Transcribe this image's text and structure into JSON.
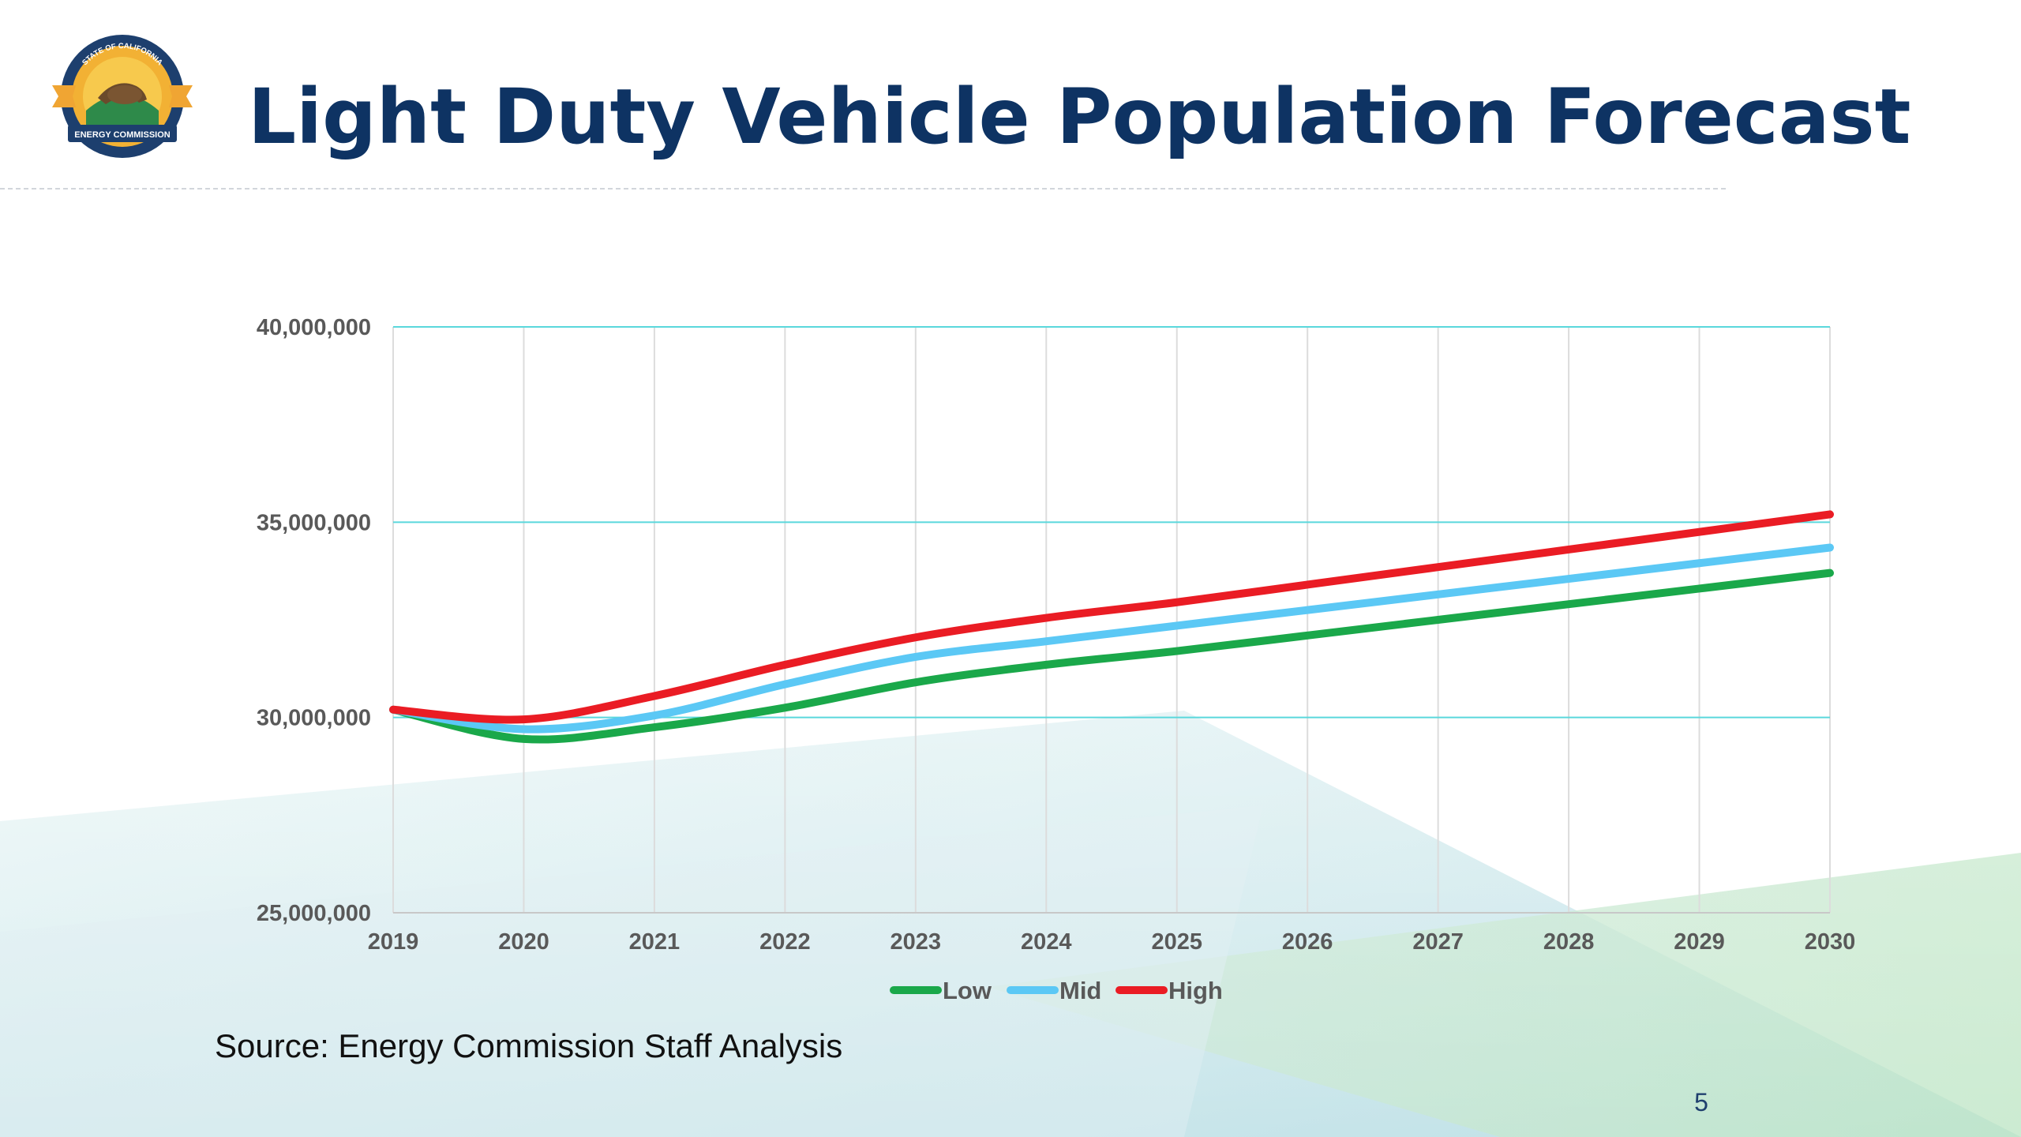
{
  "slide": {
    "title": "Light Duty Vehicle Population Forecast",
    "source": "Source: Energy Commission Staff Analysis",
    "page_number": "5",
    "logo_ring_top": "STATE OF CALIFORNIA",
    "logo_ring_bottom": "ENERGY COMMISSION"
  },
  "colors": {
    "title": "#0e3363",
    "grid_horizontal": "#5ad8dc",
    "grid_vertical": "#dcdcdc",
    "tick_text": "#595959"
  },
  "chart_data": {
    "type": "line",
    "title": "",
    "xlabel": "",
    "ylabel": "",
    "x": [
      2019,
      2020,
      2021,
      2022,
      2023,
      2024,
      2025,
      2026,
      2027,
      2028,
      2029,
      2030
    ],
    "xlim": [
      2019,
      2030
    ],
    "ylim": [
      25000000,
      40000000
    ],
    "y_ticks": [
      "25,000,000",
      "30,000,000",
      "35,000,000",
      "40,000,000"
    ],
    "y_tick_values": [
      25000000,
      30000000,
      35000000,
      40000000
    ],
    "grid": true,
    "legend_position": "bottom",
    "series": [
      {
        "name": "Low",
        "color": "#1aa84a",
        "values": [
          30200000,
          29450000,
          29750000,
          30250000,
          30900000,
          31350000,
          31700000,
          32100000,
          32500000,
          32900000,
          33300000,
          33700000
        ]
      },
      {
        "name": "Mid",
        "color": "#5bc8f5",
        "values": [
          30200000,
          29700000,
          30050000,
          30850000,
          31550000,
          31950000,
          32350000,
          32750000,
          33150000,
          33550000,
          33950000,
          34350000
        ]
      },
      {
        "name": "High",
        "color": "#ea1c24",
        "values": [
          30200000,
          29950000,
          30550000,
          31350000,
          32050000,
          32550000,
          32950000,
          33400000,
          33850000,
          34300000,
          34750000,
          35200000
        ]
      }
    ]
  }
}
